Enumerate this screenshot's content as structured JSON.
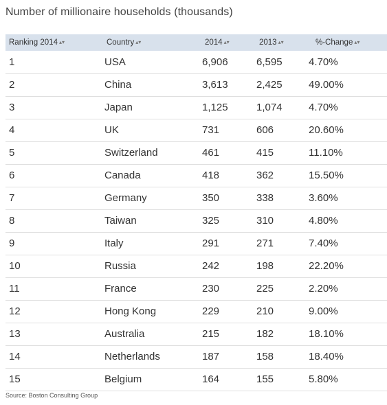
{
  "title": "Number of millionaire households (thousands)",
  "table": {
    "columns": [
      "Ranking 2014",
      "Country",
      "2014",
      "2013",
      "%-Change"
    ],
    "sort_icon": "▴▾",
    "rows": [
      {
        "rank": "1",
        "country": "USA",
        "y2014": "6,906",
        "y2013": "6,595",
        "change": "4.70%"
      },
      {
        "rank": "2",
        "country": "China",
        "y2014": "3,613",
        "y2013": "2,425",
        "change": "49.00%"
      },
      {
        "rank": "3",
        "country": "Japan",
        "y2014": "1,125",
        "y2013": "1,074",
        "change": "4.70%"
      },
      {
        "rank": "4",
        "country": "UK",
        "y2014": "731",
        "y2013": "606",
        "change": "20.60%"
      },
      {
        "rank": "5",
        "country": "Switzerland",
        "y2014": "461",
        "y2013": "415",
        "change": "11.10%"
      },
      {
        "rank": "6",
        "country": "Canada",
        "y2014": "418",
        "y2013": "362",
        "change": "15.50%"
      },
      {
        "rank": "7",
        "country": "Germany",
        "y2014": "350",
        "y2013": "338",
        "change": "3.60%"
      },
      {
        "rank": "8",
        "country": "Taiwan",
        "y2014": "325",
        "y2013": "310",
        "change": "4.80%"
      },
      {
        "rank": "9",
        "country": "Italy",
        "y2014": "291",
        "y2013": "271",
        "change": "7.40%"
      },
      {
        "rank": "10",
        "country": "Russia",
        "y2014": "242",
        "y2013": "198",
        "change": "22.20%"
      },
      {
        "rank": "11",
        "country": "France",
        "y2014": "230",
        "y2013": "225",
        "change": "2.20%"
      },
      {
        "rank": "12",
        "country": "Hong Kong",
        "y2014": "229",
        "y2013": "210",
        "change": "9.00%"
      },
      {
        "rank": "13",
        "country": "Australia",
        "y2014": "215",
        "y2013": "182",
        "change": "18.10%"
      },
      {
        "rank": "14",
        "country": "Netherlands",
        "y2014": "187",
        "y2013": "158",
        "change": "18.40%"
      },
      {
        "rank": "15",
        "country": "Belgium",
        "y2014": "164",
        "y2013": "155",
        "change": "5.80%"
      }
    ]
  },
  "source": "Source: Boston Consulting Group",
  "colors": {
    "header_background": "#d8e1ec",
    "row_divider": "#dfdfdf",
    "text": "#333333"
  }
}
